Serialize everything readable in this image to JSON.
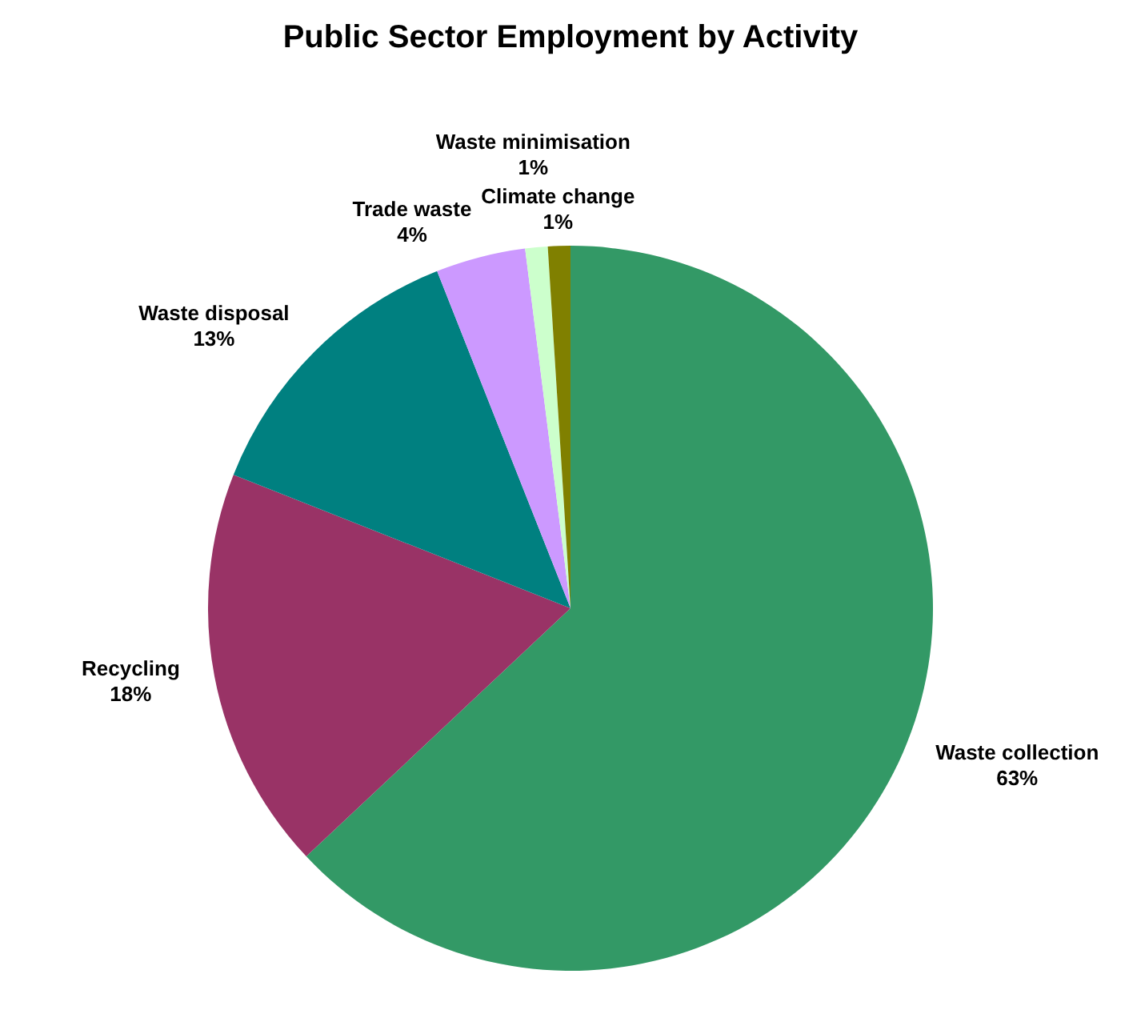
{
  "chart_data": {
    "type": "pie",
    "title": "Public Sector Employment by Activity",
    "categories": [
      "Waste collection",
      "Recycling",
      "Waste disposal",
      "Trade waste",
      "Waste minimisation",
      "Climate change"
    ],
    "values": [
      63,
      18,
      13,
      4,
      1,
      1
    ],
    "value_labels": [
      "63%",
      "18%",
      "13%",
      "4%",
      "1%",
      "1%"
    ],
    "colors": [
      "#339966",
      "#993366",
      "#008080",
      "#cc99ff",
      "#ccffcc",
      "#808000"
    ],
    "legend": false
  }
}
